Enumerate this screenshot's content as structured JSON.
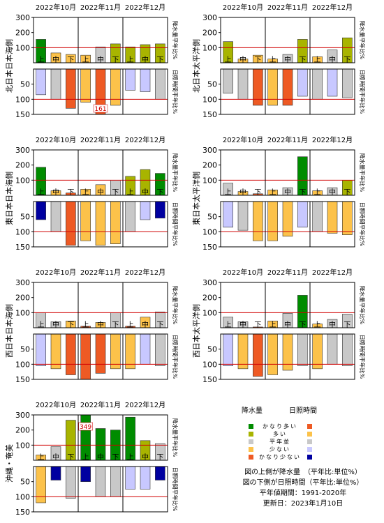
{
  "months": [
    "2022年10月",
    "2022年11月",
    "2022年12月"
  ],
  "dekads": [
    "上",
    "中",
    "下"
  ],
  "upper_label": "降水量平年比%",
  "lower_label": "日照時間平年比%",
  "legend": {
    "precip_title": "降水量",
    "sun_title": "日照時間",
    "items": [
      {
        "key": "very_high",
        "label": "かなり多い",
        "precip_color": "#008c00",
        "sun_color": "#ee5a24"
      },
      {
        "key": "high",
        "label": "多い",
        "precip_color": "#a8b400",
        "sun_color": "#fcc24a"
      },
      {
        "key": "normal",
        "label": "平年並",
        "precip_color": "#c8c8c8",
        "sun_color": "#c8c8c8"
      },
      {
        "key": "low",
        "label": "少ない",
        "precip_color": "#fcc24a",
        "sun_color": "#c8c8ff"
      },
      {
        "key": "very_low",
        "label": "かなり少ない",
        "precip_color": "#ee5a24",
        "sun_color": "#0000a0"
      }
    ]
  },
  "notes": [
    "図の上側が降水量　（平年比:単位%）",
    "図の下側が日照時間（平年比:単位%）",
    "平年値期間：1991-2020年",
    "更新日：2023年1月10日"
  ],
  "chart_data": [
    {
      "type": "bar",
      "region": "北日本日本海側",
      "categories": [
        "10月上旬",
        "10月中旬",
        "10月下旬",
        "11月上旬",
        "11月中旬",
        "11月下旬",
        "12月上旬",
        "12月中旬",
        "12月下旬"
      ],
      "precipitation": {
        "values": [
          155,
          65,
          55,
          50,
          105,
          125,
          105,
          120,
          125
        ],
        "classes": [
          "very_high",
          "low",
          "low",
          "low",
          "normal",
          "high",
          "high",
          "high",
          "high"
        ],
        "ylim": [
          0,
          300
        ],
        "ticks": [
          100,
          200,
          300
        ]
      },
      "sunshine": {
        "values": [
          85,
          100,
          130,
          110,
          161,
          120,
          70,
          75,
          100
        ],
        "classes": [
          "low",
          "normal",
          "very_high",
          "high",
          "very_high",
          "high",
          "low",
          "low",
          "normal"
        ],
        "ylim": [
          0,
          150
        ],
        "ticks": [
          50,
          100,
          150
        ],
        "overflow_labels": [
          {
            "index": 4,
            "text": "161"
          }
        ]
      }
    },
    {
      "type": "bar",
      "region": "北日本太平洋側",
      "categories": [
        "10月上旬",
        "10月中旬",
        "10月下旬",
        "11月上旬",
        "11月中旬",
        "11月下旬",
        "12月上旬",
        "12月中旬",
        "12月下旬"
      ],
      "precipitation": {
        "values": [
          140,
          25,
          50,
          25,
          55,
          155,
          40,
          85,
          165
        ],
        "classes": [
          "high",
          "low",
          "low",
          "low",
          "normal",
          "high",
          "low",
          "normal",
          "high"
        ],
        "ylim": [
          0,
          300
        ],
        "ticks": [
          100,
          200,
          300
        ]
      },
      "sunshine": {
        "values": [
          80,
          100,
          120,
          120,
          120,
          90,
          100,
          90,
          95
        ],
        "classes": [
          "normal",
          "normal",
          "very_high",
          "high",
          "very_high",
          "low",
          "normal",
          "low",
          "normal"
        ],
        "ylim": [
          0,
          150
        ],
        "ticks": [
          50,
          100,
          150
        ]
      }
    },
    {
      "type": "bar",
      "region": "東日本日本海側",
      "categories": [
        "10月上旬",
        "10月中旬",
        "10月下旬",
        "11月上旬",
        "11月中旬",
        "11月下旬",
        "12月上旬",
        "12月中旬",
        "12月下旬"
      ],
      "precipitation": {
        "values": [
          185,
          30,
          15,
          40,
          70,
          100,
          125,
          170,
          145
        ],
        "classes": [
          "very_high",
          "low",
          "very_low",
          "low",
          "low",
          "normal",
          "high",
          "high",
          "very_high"
        ],
        "ylim": [
          0,
          300
        ],
        "ticks": [
          100,
          200,
          300
        ]
      },
      "sunshine": {
        "values": [
          60,
          100,
          145,
          130,
          145,
          140,
          100,
          60,
          55
        ],
        "classes": [
          "very_low",
          "normal",
          "very_high",
          "high",
          "high",
          "high",
          "normal",
          "low",
          "very_low"
        ],
        "ylim": [
          0,
          150
        ],
        "ticks": [
          50,
          100,
          150
        ]
      }
    },
    {
      "type": "bar",
      "region": "東日本太平洋側",
      "categories": [
        "10月上旬",
        "10月中旬",
        "10月下旬",
        "11月上旬",
        "11月中旬",
        "11月下旬",
        "12月上旬",
        "12月中旬",
        "12月下旬"
      ],
      "precipitation": {
        "values": [
          80,
          25,
          10,
          35,
          50,
          255,
          30,
          50,
          100
        ],
        "classes": [
          "normal",
          "low",
          "very_low",
          "low",
          "normal",
          "very_high",
          "low",
          "normal",
          "high"
        ],
        "ylim": [
          0,
          300
        ],
        "ticks": [
          100,
          200,
          300
        ]
      },
      "sunshine": {
        "values": [
          85,
          95,
          130,
          130,
          115,
          85,
          100,
          105,
          110
        ],
        "classes": [
          "low",
          "normal",
          "high",
          "high",
          "high",
          "low",
          "normal",
          "high",
          "high"
        ],
        "ylim": [
          0,
          150
        ],
        "ticks": [
          50,
          100,
          150
        ]
      }
    },
    {
      "type": "bar",
      "region": "西日本日本海側",
      "categories": [
        "10月上旬",
        "10月中旬",
        "10月下旬",
        "11月上旬",
        "11月中旬",
        "11月下旬",
        "12月上旬",
        "12月中旬",
        "12月下旬"
      ],
      "precipitation": {
        "values": [
          100,
          40,
          45,
          10,
          35,
          100,
          10,
          70,
          105
        ],
        "classes": [
          "normal",
          "normal",
          "low",
          "very_low",
          "low",
          "normal",
          "very_low",
          "low",
          "normal"
        ],
        "ylim": [
          0,
          300
        ],
        "ticks": [
          100,
          200,
          300
        ]
      },
      "sunshine": {
        "values": [
          105,
          115,
          135,
          150,
          130,
          115,
          115,
          100,
          105
        ],
        "classes": [
          "low",
          "high",
          "very_high",
          "very_high",
          "very_high",
          "high",
          "high",
          "low",
          "normal"
        ],
        "ylim": [
          0,
          150
        ],
        "ticks": [
          50,
          100,
          150
        ]
      }
    },
    {
      "type": "bar",
      "region": "西日本太平洋側",
      "categories": [
        "10月上旬",
        "10月中旬",
        "10月下旬",
        "11月上旬",
        "11月中旬",
        "11月下旬",
        "12月上旬",
        "12月中旬",
        "12月下旬"
      ],
      "precipitation": {
        "values": [
          70,
          40,
          5,
          45,
          95,
          215,
          25,
          55,
          90
        ],
        "classes": [
          "normal",
          "normal",
          "very_low",
          "low",
          "normal",
          "very_high",
          "low",
          "normal",
          "normal"
        ],
        "ylim": [
          0,
          300
        ],
        "ticks": [
          100,
          200,
          300
        ]
      },
      "sunshine": {
        "values": [
          105,
          115,
          140,
          135,
          120,
          105,
          115,
          100,
          105
        ],
        "classes": [
          "low",
          "high",
          "very_high",
          "high",
          "high",
          "normal",
          "high",
          "normal",
          "normal"
        ],
        "ylim": [
          0,
          150
        ],
        "ticks": [
          50,
          100,
          150
        ]
      }
    },
    {
      "type": "bar",
      "region": "沖縄・奄美",
      "categories": [
        "10月上旬",
        "10月中旬",
        "10月下旬",
        "11月上旬",
        "11月中旬",
        "11月下旬",
        "12月上旬",
        "12月中旬",
        "12月下旬"
      ],
      "precipitation": {
        "values": [
          35,
          90,
          265,
          349,
          210,
          200,
          285,
          130,
          110
        ],
        "classes": [
          "low",
          "normal",
          "high",
          "very_high",
          "very_high",
          "very_high",
          "very_high",
          "high",
          "normal"
        ],
        "ylim": [
          0,
          300
        ],
        "ticks": [
          100,
          200,
          300
        ],
        "overflow_labels": [
          {
            "index": 3,
            "text": "349"
          }
        ]
      },
      "sunshine": {
        "values": [
          120,
          45,
          105,
          50,
          100,
          100,
          75,
          75,
          45
        ],
        "classes": [
          "high",
          "very_low",
          "normal",
          "very_low",
          "normal",
          "normal",
          "low",
          "low",
          "very_low"
        ],
        "ylim": [
          0,
          150
        ],
        "ticks": [
          50,
          100,
          150
        ]
      }
    }
  ]
}
